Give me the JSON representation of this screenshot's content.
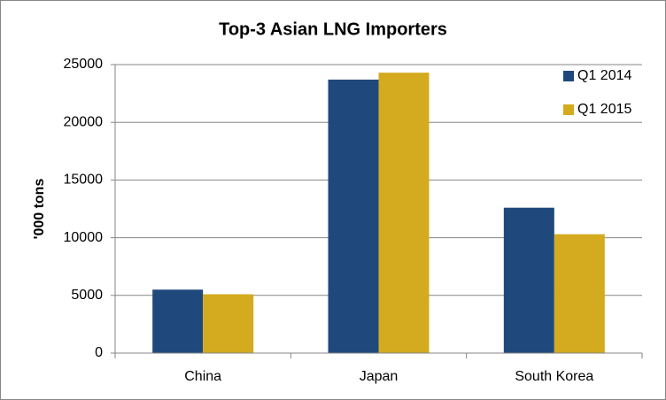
{
  "chart_data": {
    "type": "bar",
    "title": "Top-3 Asian LNG Importers",
    "y_label": "'000 tons",
    "categories": [
      "China",
      "Japan",
      "South Korea"
    ],
    "series": [
      {
        "name": "Q1 2014",
        "color": "#1f497d",
        "values": [
          5500,
          23700,
          12600
        ]
      },
      {
        "name": "Q1 2015",
        "color": "#d4aa1e",
        "values": [
          5100,
          24300,
          10300
        ]
      }
    ],
    "ylim": [
      0,
      25000
    ],
    "yticks": [
      0,
      5000,
      10000,
      15000,
      20000,
      25000
    ],
    "grid": true,
    "legend": "top-right"
  }
}
